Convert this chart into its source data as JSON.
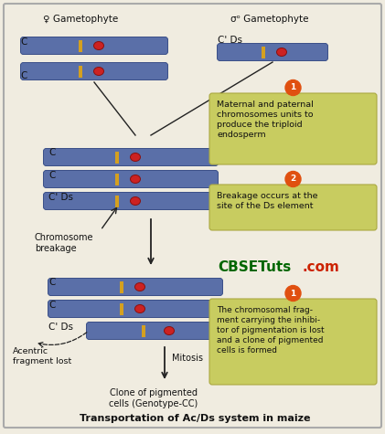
{
  "bg_color": "#f0ece0",
  "border_color": "#aaaaaa",
  "title": "Transportation of Ac/Ds system in maize",
  "chrom_color": "#5a6fa8",
  "chrom_edge": "#3a4f88",
  "stripe_color": "#d4a020",
  "dot_color": "#cc2222",
  "dot_edge": "#881111",
  "note_bg": "#c8cc60",
  "note_border": "#aaa840",
  "circle_color": "#e05010",
  "circle_text": "#ffffff",
  "arrow_color": "#222222",
  "cbse_green": "#006600",
  "cbse_purple": "#6600aa",
  "cbse_red": "#cc2200",
  "label_color": "#111111",
  "female_symbol": "♀ Gametophyte",
  "male_symbol": "σᵒ Gametophyte",
  "note1_text": "Maternal and paternal\nchromosomes units to\nproduce the triploid\nendosperm",
  "note2_text": "Breakage occurs at the\nsite of the Ds element",
  "note3_text": "The chromosomal frag-\nment carrying the inhibi-\ntor of pigmentation is lost\nand a clone of pigmented\ncells is formed",
  "cbse_text": "CBSETuts",
  "com_text": ".com",
  "label_acentric": "Acentric\nfragment lost",
  "label_chrom_breakage": "Chromosome\nbreakage",
  "label_mitosis": "Mitosis",
  "label_clone": "Clone of pigmented\ncells (Genotype-CC)"
}
